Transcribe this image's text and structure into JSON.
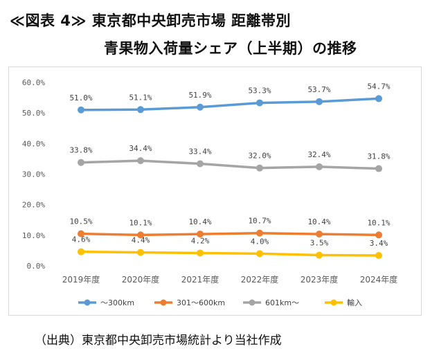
{
  "title": {
    "line1": "≪図表 4≫ 東京都中央卸売市場 距離帯別",
    "line2": "青果物入荷量シェア（上半期）の推移"
  },
  "source_note": "（出典）東京都中央卸売市場統計より当社作成",
  "chart_data": {
    "type": "line",
    "categories": [
      "2019年度",
      "2020年度",
      "2021年度",
      "2022年度",
      "2023年度",
      "2024年度"
    ],
    "ylim": [
      0,
      60
    ],
    "yticks": [
      "0.0%",
      "10.0%",
      "20.0%",
      "30.0%",
      "40.0%",
      "50.0%",
      "60.0%"
    ],
    "grid": false,
    "legend_position": "bottom",
    "series": [
      {
        "name": "～300km",
        "color": "#5b9bd5",
        "values": [
          51.0,
          51.1,
          51.9,
          53.3,
          53.7,
          54.7
        ],
        "labels": [
          "51.0%",
          "51.1%",
          "51.9%",
          "53.3%",
          "53.7%",
          "54.7%"
        ]
      },
      {
        "name": "301～600km",
        "color": "#ed7d31",
        "values": [
          10.5,
          10.1,
          10.4,
          10.7,
          10.4,
          10.1
        ],
        "labels": [
          "10.5%",
          "10.1%",
          "10.4%",
          "10.7%",
          "10.4%",
          "10.1%"
        ]
      },
      {
        "name": "601km～",
        "color": "#a5a5a5",
        "values": [
          33.8,
          34.4,
          33.4,
          32.0,
          32.4,
          31.8
        ],
        "labels": [
          "33.8%",
          "34.4%",
          "33.4%",
          "32.0%",
          "32.4%",
          "31.8%"
        ]
      },
      {
        "name": "輸入",
        "color": "#ffc000",
        "values": [
          4.6,
          4.4,
          4.2,
          4.0,
          3.5,
          3.4
        ],
        "labels": [
          "4.6%",
          "4.4%",
          "4.2%",
          "4.0%",
          "3.5%",
          "3.4%"
        ]
      }
    ]
  }
}
